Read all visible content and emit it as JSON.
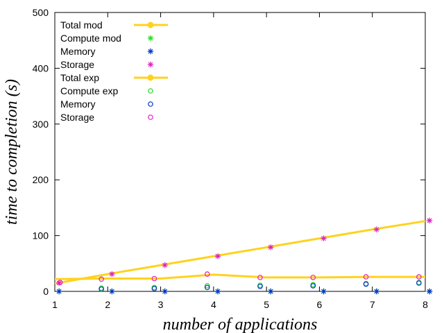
{
  "chart_data": {
    "type": "line",
    "xlabel": "number of applications",
    "ylabel": "time to completion (s)",
    "xlim": [
      1,
      8
    ],
    "ylim": [
      0,
      500
    ],
    "x_ticks": [
      "1",
      "2",
      "3",
      "4",
      "5",
      "6",
      "7",
      "8"
    ],
    "y_ticks": [
      "0",
      "100",
      "200",
      "300",
      "400",
      "500"
    ],
    "grid": false,
    "legend_position": "top-left",
    "series": [
      {
        "name": "Total mod",
        "style": "line-dot",
        "color": "#FFD21E",
        "x": [
          1,
          2,
          3,
          4,
          5,
          6,
          7,
          8
        ],
        "y": [
          14,
          31,
          47,
          63,
          79,
          95,
          111,
          126
        ]
      },
      {
        "name": "Compute mod",
        "style": "asterisk",
        "color": "#22DD22",
        "x": [
          1.08,
          2.08,
          3.08,
          4.08,
          5.08,
          6.08,
          7.08,
          8.08
        ],
        "y": [
          0,
          0,
          0,
          0,
          0,
          0,
          0,
          0
        ]
      },
      {
        "name": "Memory",
        "style": "asterisk",
        "color": "#0033CC",
        "x": [
          1.08,
          2.08,
          3.08,
          4.08,
          5.08,
          6.08,
          7.08,
          8.08
        ],
        "y": [
          0,
          0,
          0,
          0,
          0,
          0,
          0,
          0
        ]
      },
      {
        "name": "Storage",
        "style": "asterisk",
        "color": "#E020C0",
        "x": [
          1.08,
          2.08,
          3.08,
          4.08,
          5.08,
          6.08,
          7.08,
          8.08
        ],
        "y": [
          15,
          31,
          47,
          63,
          79,
          95,
          111,
          127
        ]
      },
      {
        "name": "Total exp",
        "style": "line-dot",
        "color": "#FFD21E",
        "x": [
          1,
          2,
          3,
          4,
          5,
          6,
          7,
          8
        ],
        "y": [
          22,
          23,
          23,
          30,
          25,
          25,
          26,
          26
        ]
      },
      {
        "name": "Compute exp",
        "style": "circle",
        "color": "#22DD22",
        "x": [
          1.88,
          2.88,
          3.88,
          4.88,
          5.88,
          6.88,
          7.88
        ],
        "y": [
          6,
          7,
          10,
          11,
          12,
          14,
          16
        ]
      },
      {
        "name": "Memory",
        "style": "circle",
        "color": "#0033CC",
        "x": [
          1.88,
          2.88,
          3.88,
          4.88,
          5.88,
          6.88,
          7.88
        ],
        "y": [
          4,
          5,
          7,
          9,
          10,
          13,
          15
        ]
      },
      {
        "name": "Storage",
        "style": "circle",
        "color": "#E020C0",
        "x": [
          1.1,
          1.88,
          2.88,
          3.88,
          4.88,
          5.88,
          6.88,
          7.88
        ],
        "y": [
          16,
          22,
          23,
          31,
          25,
          25,
          26,
          26
        ]
      }
    ]
  }
}
